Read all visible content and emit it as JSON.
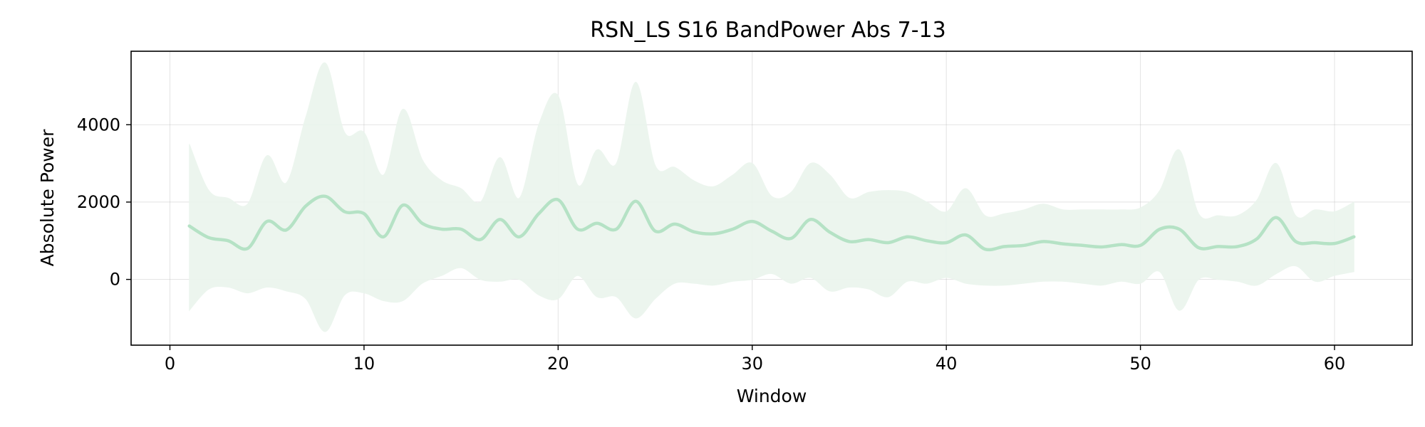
{
  "chart_data": {
    "type": "area",
    "title": "RSN_LS S16 BandPower Abs 7-13",
    "xlabel": "Window",
    "ylabel": "Absolute Power",
    "xlim": [
      -2,
      64
    ],
    "ylim": [
      -1700,
      5900
    ],
    "xticks": [
      0,
      10,
      20,
      30,
      40,
      50,
      60
    ],
    "yticks": [
      0,
      2000,
      4000
    ],
    "grid": true,
    "series": [
      {
        "x": [
          1,
          2,
          3,
          4,
          5,
          6,
          7,
          8,
          9,
          10,
          11,
          12,
          13,
          14,
          15,
          16,
          17,
          18,
          19,
          20,
          21,
          22,
          23,
          24,
          25,
          26,
          27,
          28,
          29,
          30,
          31,
          32,
          33,
          34,
          35,
          36,
          37,
          38,
          39,
          40,
          41,
          42,
          43,
          44,
          45,
          46,
          47,
          48,
          49,
          50,
          51,
          52,
          53,
          54,
          55,
          56,
          57,
          58,
          59,
          60,
          61
        ],
        "mean": [
          1380,
          1080,
          1000,
          800,
          1500,
          1280,
          1900,
          2150,
          1750,
          1700,
          1100,
          1920,
          1450,
          1300,
          1300,
          1030,
          1550,
          1100,
          1700,
          2060,
          1300,
          1450,
          1300,
          2020,
          1250,
          1430,
          1230,
          1180,
          1300,
          1500,
          1250,
          1060,
          1550,
          1220,
          980,
          1030,
          950,
          1100,
          1000,
          950,
          1150,
          780,
          850,
          880,
          980,
          920,
          880,
          840,
          900,
          880,
          1300,
          1300,
          820,
          850,
          850,
          1050,
          1600,
          980,
          950,
          930,
          1100
        ],
        "upper": [
          3500,
          2300,
          2100,
          1950,
          3200,
          2500,
          4200,
          5600,
          3800,
          3800,
          2700,
          4400,
          3100,
          2550,
          2350,
          2000,
          3150,
          2100,
          4000,
          4750,
          2450,
          3350,
          3000,
          5100,
          2950,
          2900,
          2550,
          2400,
          2700,
          3000,
          2150,
          2250,
          3000,
          2700,
          2100,
          2250,
          2300,
          2250,
          2000,
          1750,
          2350,
          1650,
          1700,
          1800,
          1950,
          1800,
          1800,
          1800,
          1800,
          1850,
          2300,
          3350,
          1700,
          1650,
          1650,
          2050,
          3000,
          1650,
          1800,
          1750,
          2000
        ],
        "lower": [
          -800,
          -250,
          -200,
          -350,
          -200,
          -300,
          -500,
          -1350,
          -400,
          -350,
          -550,
          -550,
          -100,
          100,
          300,
          0,
          -50,
          0,
          -400,
          -500,
          100,
          -450,
          -450,
          -1000,
          -500,
          -100,
          -100,
          -150,
          -50,
          0,
          150,
          -100,
          50,
          -300,
          -200,
          -250,
          -450,
          -50,
          -100,
          50,
          -100,
          -150,
          -150,
          -100,
          -50,
          -50,
          -100,
          -150,
          -50,
          -100,
          200,
          -800,
          0,
          0,
          -50,
          -150,
          150,
          350,
          -50,
          100,
          200
        ]
      }
    ],
    "colors": {
      "line": "#b5e2c5",
      "band": "#eaf5ed"
    }
  }
}
